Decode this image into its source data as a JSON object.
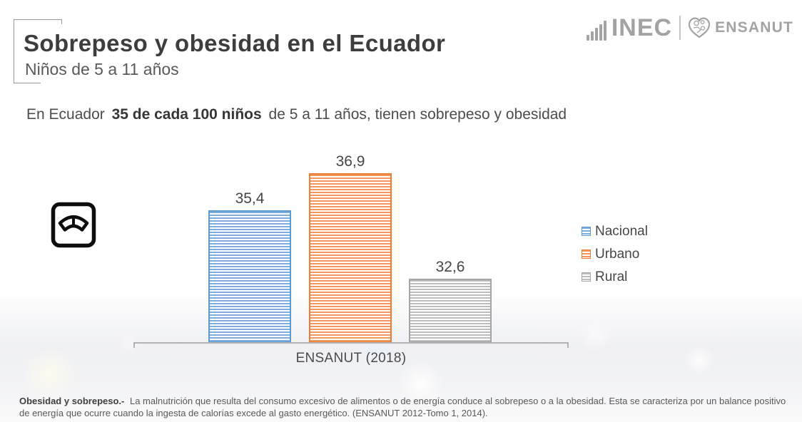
{
  "slide": {
    "title": "Sobrepeso y obesidad en el Ecuador",
    "subtitle": "Niños de 5 a 11 años",
    "statement": {
      "prefix": "En Ecuador ",
      "highlight": "35 de cada 100 niños",
      "suffix": " de 5 a 11 años, tienen sobrepeso y obesidad"
    }
  },
  "header_logos": {
    "inec_label": "INEC",
    "ensanut_label": "ENSANUT",
    "color": "#a5a2a2"
  },
  "chart_data": {
    "type": "bar",
    "categories": [
      "ENSANUT (2018)"
    ],
    "series": [
      {
        "name": "Nacional",
        "values": [
          35.4
        ],
        "label": "35,4",
        "color": "#5b9bd5",
        "stripe": "#7fabdd"
      },
      {
        "name": "Urbano",
        "values": [
          36.9
        ],
        "label": "36,9",
        "color": "#ed7d31",
        "stripe": "#f0985e"
      },
      {
        "name": "Rural",
        "values": [
          32.6
        ],
        "label": "32,6",
        "color": "#a5a5a5",
        "stripe": "#bdbdbd"
      }
    ],
    "title": "",
    "xlabel": "ENSANUT (2018)",
    "ylabel": "",
    "ylim": [
      30,
      38
    ],
    "grid": false,
    "pattern": "light-horizontal-stripes",
    "legend_position": "right",
    "axis_color": "#b2b2b2",
    "value_label_color": "#464646"
  },
  "footnote": {
    "bold": "Obesidad y sobrepeso.-",
    "text": " La malnutrición que resulta del consumo excesivo de alimentos o de energía conduce al sobrepeso o a la obesidad. Esta se caracteriza por un balance positivo de energía que ocurre cuando la ingesta de calorías excede al gasto energético. (ENSANUT 2012-Tomo 1, 2014)."
  }
}
